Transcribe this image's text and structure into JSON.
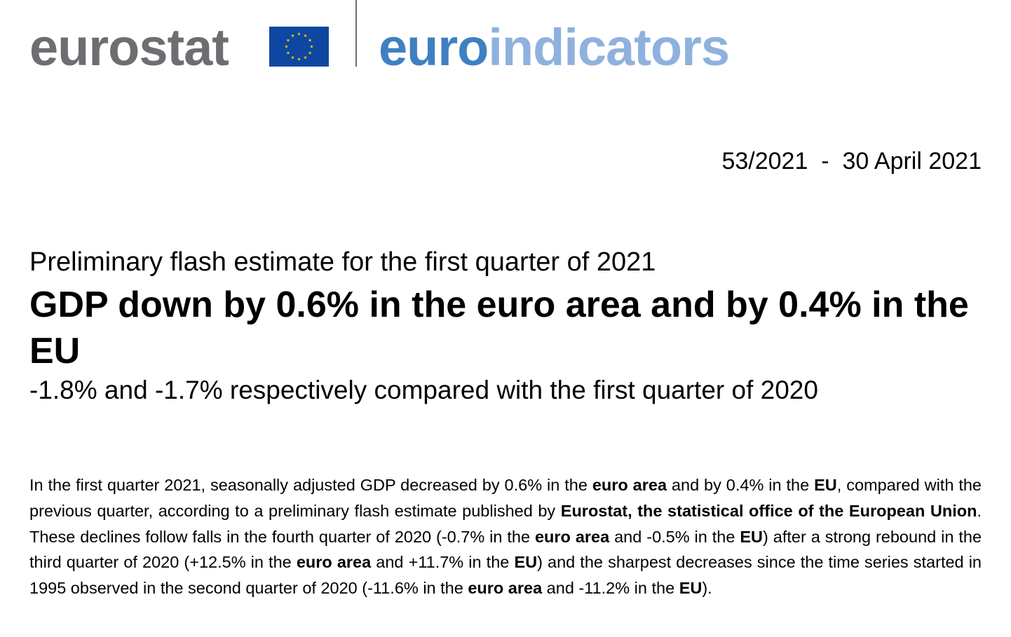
{
  "header": {
    "logo_left": "eurostat",
    "logo_right_part1": "euro",
    "logo_right_part2": "indicators",
    "flag_color": "#0e47a1",
    "flag_star_color": "#ffcc00"
  },
  "release": {
    "number": "53/2021",
    "separator": "-",
    "date": "30 April 2021"
  },
  "kicker": "Preliminary flash estimate for the first quarter of 2021",
  "headline": "GDP down by 0.6% in the euro area and by 0.4% in the EU",
  "subheadline": "-1.8% and -1.7% respectively compared with the first quarter of 2020",
  "body": {
    "s1": "In the first quarter 2021, seasonally adjusted GDP decreased by 0.6% in the ",
    "b1": "euro area",
    "s2": " and by 0.4% in the ",
    "b2": "EU",
    "s3": ", compared with the previous quarter, according to a preliminary flash estimate published by ",
    "b3": "Eurostat, the statistical office of the European Union",
    "s4": ". These declines follow falls in the fourth quarter of 2020 (-0.7% in the ",
    "b4": "euro area",
    "s5": " and -0.5% in the ",
    "b5": "EU",
    "s6": ") after a strong rebound in the third quarter of 2020 (+12.5% in the ",
    "b6": "euro area",
    "s7": " and +11.7% in the ",
    "b7": "EU",
    "s8": ") and the sharpest decreases since the time series started in 1995 observed in the second quarter of 2020 (-11.6% in the ",
    "b8": "euro area",
    "s9": " and -11.2% in the ",
    "b9": "EU",
    "s10": ")."
  }
}
